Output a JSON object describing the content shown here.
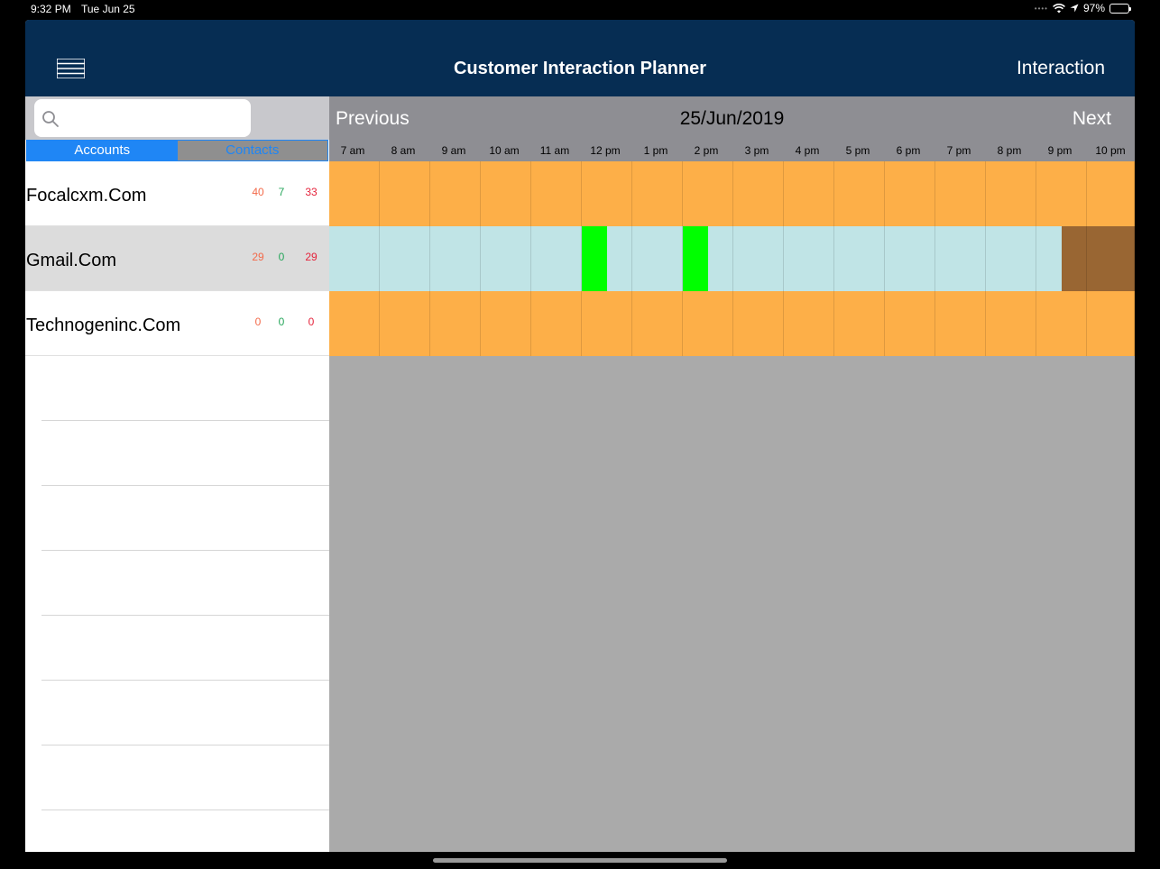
{
  "status_bar": {
    "time": "9:32 PM",
    "date": "Tue Jun 25",
    "battery": "97%"
  },
  "nav": {
    "title": "Customer Interaction Planner",
    "action_label": "Interaction"
  },
  "search": {
    "placeholder": "",
    "value": ""
  },
  "segments": {
    "accounts": "Accounts",
    "contacts": "Contacts",
    "selected": "Accounts"
  },
  "accounts": [
    {
      "name": "Focalcxm.Com",
      "count_a": "40",
      "count_b": "7",
      "count_c": "33",
      "selected": false
    },
    {
      "name": "Gmail.Com",
      "count_a": "29",
      "count_b": "0",
      "count_c": "29",
      "selected": true
    },
    {
      "name": "Technogeninc.Com",
      "count_a": "0",
      "count_b": "0",
      "count_c": "0",
      "selected": false
    }
  ],
  "schedule": {
    "previous_label": "Previous",
    "date": "25/Jun/2019",
    "next_label": "Next",
    "hours": [
      "7 am",
      "8 am",
      "9 am",
      "10 am",
      "11 am",
      "12 pm",
      "1 pm",
      "2 pm",
      "3 pm",
      "4 pm",
      "5 pm",
      "6 pm",
      "7 pm",
      "8 pm",
      "9 pm",
      "10 pm"
    ],
    "rows": [
      {
        "account": "Focalcxm.Com",
        "slots": [
          "orange",
          "orange",
          "orange",
          "orange",
          "orange",
          "orange",
          "orange",
          "orange",
          "orange",
          "orange",
          "orange",
          "orange",
          "orange",
          "orange",
          "orange",
          "orange"
        ],
        "marks": []
      },
      {
        "account": "Gmail.Com",
        "slots": [
          "lightblue",
          "lightblue",
          "lightblue",
          "lightblue",
          "lightblue",
          "lightblue",
          "lightblue",
          "lightblue",
          "lightblue",
          "lightblue",
          "lightblue",
          "lightblue",
          "lightblue",
          "lightblue",
          "lightblue",
          "brown"
        ],
        "marks": [
          "12 pm",
          "2 pm"
        ],
        "partial_brown_from_hour": "9 pm"
      },
      {
        "account": "Technogeninc.Com",
        "slots": [
          "orange",
          "orange",
          "orange",
          "orange",
          "orange",
          "orange",
          "orange",
          "orange",
          "orange",
          "orange",
          "orange",
          "orange",
          "orange",
          "orange",
          "orange",
          "orange"
        ],
        "marks": []
      }
    ]
  },
  "colors": {
    "nav_bg": "#062d53",
    "accent": "#1f86f5",
    "orange": "#fdaf48",
    "lightblue": "#c0e4e6",
    "brown": "#996633",
    "mark": "#00ff00"
  }
}
